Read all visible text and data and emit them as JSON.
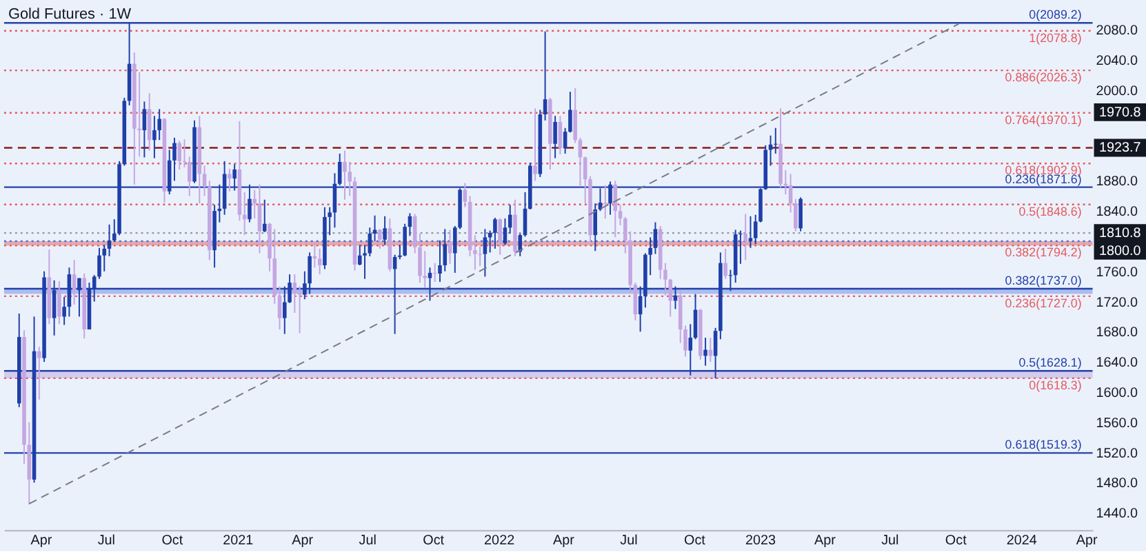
{
  "chart_data": {
    "type": "candlestick",
    "title": "Gold Futures · 1W",
    "xlim": [
      "2020-02-10",
      "2024-04-10"
    ],
    "xticks": [
      {
        "value": "2020-04-01",
        "label": "Apr"
      },
      {
        "value": "2020-07-01",
        "label": "Jul"
      },
      {
        "value": "2020-10-01",
        "label": "Oct"
      },
      {
        "value": "2021-01-01",
        "label": "2021"
      },
      {
        "value": "2021-04-01",
        "label": "Apr"
      },
      {
        "value": "2021-07-01",
        "label": "Jul"
      },
      {
        "value": "2021-10-01",
        "label": "Oct"
      },
      {
        "value": "2022-01-01",
        "label": "2022"
      },
      {
        "value": "2022-04-01",
        "label": "Apr"
      },
      {
        "value": "2022-07-01",
        "label": "Jul"
      },
      {
        "value": "2022-10-01",
        "label": "Oct"
      },
      {
        "value": "2023-01-01",
        "label": "2023"
      },
      {
        "value": "2023-04-01",
        "label": "Apr"
      },
      {
        "value": "2023-07-01",
        "label": "Jul"
      },
      {
        "value": "2023-10-01",
        "label": "Oct"
      },
      {
        "value": "2024-01-01",
        "label": "2024"
      },
      {
        "value": "2024-04-01",
        "label": "Apr"
      }
    ],
    "ylim": [
      1417,
      2117
    ],
    "yticks": [
      {
        "value": 1440,
        "label": "1440.0"
      },
      {
        "value": 1480,
        "label": "1480.0"
      },
      {
        "value": 1520,
        "label": "1520.0"
      },
      {
        "value": 1560,
        "label": "1560.0"
      },
      {
        "value": 1600,
        "label": "1600.0"
      },
      {
        "value": 1640,
        "label": "1640.0"
      },
      {
        "value": 1680,
        "label": "1680.0"
      },
      {
        "value": 1720,
        "label": "1720.0"
      },
      {
        "value": 1760,
        "label": "1760.0"
      },
      {
        "value": 1840,
        "label": "1840.0"
      },
      {
        "value": 1880,
        "label": "1880.0"
      },
      {
        "value": 2000,
        "label": "2000.0"
      },
      {
        "value": 2040,
        "label": "2040.0"
      },
      {
        "value": 2080,
        "label": "2080.0"
      }
    ],
    "grid": false,
    "series": [
      {
        "color": "#1f3fa8",
        "x": [
          "2020-03-02",
          "2020-03-23",
          "2020-04-06",
          "2020-04-20",
          "2020-05-04",
          "2020-05-11",
          "2020-05-25",
          "2020-06-08",
          "2020-06-15",
          "2020-06-22",
          "2020-06-29",
          "2020-07-06",
          "2020-07-13",
          "2020-07-20",
          "2020-07-27",
          "2020-08-03",
          "2020-08-24",
          "2020-09-07",
          "2020-09-14",
          "2020-09-28",
          "2020-10-05",
          "2020-11-02",
          "2020-11-30",
          "2020-12-07",
          "2020-12-14",
          "2020-12-28",
          "2021-01-18",
          "2021-02-08",
          "2021-03-08",
          "2021-03-15",
          "2021-04-05",
          "2021-04-12",
          "2021-05-03",
          "2021-05-10",
          "2021-05-17",
          "2021-05-24",
          "2021-06-21",
          "2021-06-28",
          "2021-07-05",
          "2021-07-12",
          "2021-07-26",
          "2021-08-09",
          "2021-08-16",
          "2021-08-23",
          "2021-08-30",
          "2021-09-27",
          "2021-10-11",
          "2021-10-18",
          "2021-11-01",
          "2021-11-08",
          "2021-12-13",
          "2021-12-20",
          "2021-12-27",
          "2022-01-10",
          "2022-01-17",
          "2022-01-31",
          "2022-02-07",
          "2022-02-14",
          "2022-02-28",
          "2022-03-07",
          "2022-03-21",
          "2022-04-04",
          "2022-04-11",
          "2022-05-16",
          "2022-05-23",
          "2022-06-06",
          "2022-07-18",
          "2022-07-25",
          "2022-08-01",
          "2022-08-08",
          "2022-09-05",
          "2022-09-26",
          "2022-10-03",
          "2022-10-17",
          "2022-10-31",
          "2022-11-07",
          "2022-11-21",
          "2022-11-28",
          "2022-12-05",
          "2022-12-19",
          "2022-12-26",
          "2023-01-02",
          "2023-01-09",
          "2023-01-16",
          "2023-01-23",
          "2023-02-27"
        ],
        "ohlc": [
          [
            1585,
            1704,
            1580,
            1673
          ],
          [
            1484,
            1700,
            1480,
            1654
          ],
          [
            1645,
            1760,
            1640,
            1752
          ],
          [
            1698,
            1748,
            1675,
            1735
          ],
          [
            1700,
            1726,
            1689,
            1713
          ],
          [
            1713,
            1765,
            1700,
            1756
          ],
          [
            1735,
            1751,
            1700,
            1751
          ],
          [
            1683,
            1745,
            1683,
            1737
          ],
          [
            1737,
            1755,
            1720,
            1753
          ],
          [
            1753,
            1791,
            1750,
            1781
          ],
          [
            1781,
            1795,
            1760,
            1790
          ],
          [
            1790,
            1822,
            1780,
            1801
          ],
          [
            1801,
            1829,
            1799,
            1810
          ],
          [
            1810,
            1906,
            1808,
            1902
          ],
          [
            1902,
            1990,
            1900,
            1986
          ],
          [
            1986,
            2089,
            1980,
            2035
          ],
          [
            1947,
            1985,
            1911,
            1975
          ],
          [
            1934,
            1966,
            1910,
            1947
          ],
          [
            1947,
            1975,
            1934,
            1962
          ],
          [
            1866,
            1921,
            1862,
            1907
          ],
          [
            1907,
            1937,
            1880,
            1930
          ],
          [
            1879,
            1960,
            1877,
            1951
          ],
          [
            1788,
            1848,
            1765,
            1840
          ],
          [
            1840,
            1875,
            1825,
            1843
          ],
          [
            1843,
            1906,
            1835,
            1889
          ],
          [
            1883,
            1902,
            1867,
            1895
          ],
          [
            1829,
            1875,
            1825,
            1856
          ],
          [
            1813,
            1855,
            1812,
            1823
          ],
          [
            1698,
            1740,
            1677,
            1719
          ],
          [
            1719,
            1756,
            1718,
            1745
          ],
          [
            1729,
            1760,
            1723,
            1744
          ],
          [
            1744,
            1785,
            1730,
            1780
          ],
          [
            1768,
            1845,
            1763,
            1832
          ],
          [
            1832,
            1845,
            1808,
            1838
          ],
          [
            1838,
            1890,
            1818,
            1876
          ],
          [
            1876,
            1916,
            1874,
            1905
          ],
          [
            1769,
            1795,
            1768,
            1781
          ],
          [
            1781,
            1795,
            1750,
            1784
          ],
          [
            1784,
            1818,
            1780,
            1810
          ],
          [
            1810,
            1834,
            1800,
            1815
          ],
          [
            1802,
            1833,
            1795,
            1817
          ],
          [
            1763,
            1782,
            1677,
            1779
          ],
          [
            1779,
            1795,
            1776,
            1781
          ],
          [
            1781,
            1823,
            1780,
            1819
          ],
          [
            1819,
            1837,
            1807,
            1833
          ],
          [
            1751,
            1765,
            1721,
            1758
          ],
          [
            1757,
            1801,
            1746,
            1768
          ],
          [
            1768,
            1816,
            1760,
            1796
          ],
          [
            1784,
            1820,
            1758,
            1818
          ],
          [
            1818,
            1870,
            1816,
            1868
          ],
          [
            1783,
            1816,
            1753,
            1805
          ],
          [
            1805,
            1814,
            1785,
            1811
          ],
          [
            1811,
            1831,
            1790,
            1829
          ],
          [
            1797,
            1830,
            1795,
            1818
          ],
          [
            1818,
            1848,
            1810,
            1835
          ],
          [
            1786,
            1810,
            1780,
            1808
          ],
          [
            1808,
            1865,
            1806,
            1843
          ],
          [
            1843,
            1904,
            1842,
            1900
          ],
          [
            1889,
            1974,
            1885,
            1968
          ],
          [
            1968,
            2078,
            1960,
            1988
          ],
          [
            1929,
            1966,
            1910,
            1958
          ],
          [
            1923,
            1950,
            1916,
            1945
          ],
          [
            1945,
            1998,
            1944,
            1974
          ],
          [
            1808,
            1850,
            1787,
            1842
          ],
          [
            1842,
            1870,
            1840,
            1851
          ],
          [
            1850,
            1879,
            1835,
            1875
          ],
          [
            1703,
            1740,
            1680,
            1727
          ],
          [
            1727,
            1784,
            1712,
            1782
          ],
          [
            1782,
            1805,
            1755,
            1791
          ],
          [
            1791,
            1825,
            1783,
            1816
          ],
          [
            1721,
            1740,
            1710,
            1728
          ],
          [
            1655,
            1690,
            1622,
            1672
          ],
          [
            1672,
            1730,
            1670,
            1709
          ],
          [
            1648,
            1672,
            1635,
            1656
          ],
          [
            1648,
            1685,
            1618,
            1681
          ],
          [
            1681,
            1785,
            1670,
            1771
          ],
          [
            1754,
            1762,
            1734,
            1755
          ],
          [
            1755,
            1815,
            1745,
            1809
          ],
          [
            1809,
            1814,
            1770,
            1810
          ],
          [
            1800,
            1833,
            1791,
            1804
          ],
          [
            1804,
            1835,
            1796,
            1826
          ],
          [
            1826,
            1870,
            1825,
            1869
          ],
          [
            1869,
            1927,
            1868,
            1921
          ],
          [
            1921,
            1940,
            1900,
            1928
          ],
          [
            1928,
            1950,
            1916,
            1929
          ],
          [
            1817,
            1858,
            1813,
            1856
          ]
        ]
      },
      {
        "color": "#c4a6e2",
        "x": [
          "2020-03-09",
          "2020-03-16",
          "2020-03-30",
          "2020-04-13",
          "2020-04-27",
          "2020-05-18",
          "2020-06-01",
          "2020-08-10",
          "2020-08-17",
          "2020-08-31",
          "2020-09-21",
          "2020-10-12",
          "2020-10-19",
          "2020-10-26",
          "2020-11-09",
          "2020-11-16",
          "2020-11-23",
          "2020-12-21",
          "2021-01-04",
          "2021-01-11",
          "2021-01-25",
          "2021-02-01",
          "2021-02-15",
          "2021-02-22",
          "2021-03-01",
          "2021-03-22",
          "2021-03-29",
          "2021-04-19",
          "2021-04-26",
          "2021-05-31",
          "2021-06-07",
          "2021-06-14",
          "2021-07-19",
          "2021-08-02",
          "2021-09-06",
          "2021-09-13",
          "2021-09-20",
          "2021-10-04",
          "2021-10-25",
          "2021-11-15",
          "2021-11-22",
          "2021-11-29",
          "2021-12-06",
          "2022-01-03",
          "2022-01-24",
          "2022-02-21",
          "2022-03-14",
          "2022-03-28",
          "2022-04-18",
          "2022-04-25",
          "2022-05-02",
          "2022-05-09",
          "2022-05-30",
          "2022-06-13",
          "2022-06-20",
          "2022-06-27",
          "2022-07-04",
          "2022-07-11",
          "2022-08-15",
          "2022-08-22",
          "2022-08-29",
          "2022-09-12",
          "2022-09-19",
          "2022-10-10",
          "2022-10-24",
          "2022-11-14",
          "2022-12-12",
          "2023-01-30",
          "2023-02-06",
          "2023-02-13",
          "2023-02-20"
        ],
        "ohlc": [
          [
            1673,
            1682,
            1505,
            1530
          ],
          [
            1530,
            1560,
            1451,
            1484
          ],
          [
            1654,
            1660,
            1590,
            1645
          ],
          [
            1752,
            1789,
            1690,
            1698
          ],
          [
            1735,
            1747,
            1690,
            1700
          ],
          [
            1756,
            1775,
            1716,
            1735
          ],
          [
            1751,
            1757,
            1671,
            1683
          ],
          [
            2035,
            2050,
            1875,
            1949
          ],
          [
            1949,
            2024,
            1912,
            1947
          ],
          [
            1975,
            1996,
            1920,
            1934
          ],
          [
            1962,
            1963,
            1851,
            1866
          ],
          [
            1930,
            1933,
            1895,
            1906
          ],
          [
            1906,
            1935,
            1898,
            1905
          ],
          [
            1905,
            1912,
            1860,
            1879
          ],
          [
            1951,
            1966,
            1850,
            1889
          ],
          [
            1889,
            1900,
            1860,
            1872
          ],
          [
            1872,
            1880,
            1775,
            1788
          ],
          [
            1889,
            1896,
            1866,
            1883
          ],
          [
            1895,
            1959,
            1827,
            1835
          ],
          [
            1835,
            1865,
            1808,
            1829
          ],
          [
            1856,
            1868,
            1830,
            1850
          ],
          [
            1850,
            1875,
            1784,
            1813
          ],
          [
            1823,
            1824,
            1760,
            1777
          ],
          [
            1777,
            1816,
            1717,
            1728
          ],
          [
            1728,
            1740,
            1683,
            1698
          ],
          [
            1745,
            1756,
            1705,
            1732
          ],
          [
            1732,
            1740,
            1678,
            1729
          ],
          [
            1780,
            1798,
            1765,
            1777
          ],
          [
            1777,
            1790,
            1756,
            1768
          ],
          [
            1905,
            1920,
            1855,
            1892
          ],
          [
            1892,
            1905,
            1860,
            1879
          ],
          [
            1879,
            1885,
            1761,
            1769
          ],
          [
            1815,
            1816,
            1790,
            1802
          ],
          [
            1817,
            1830,
            1760,
            1763
          ],
          [
            1833,
            1836,
            1784,
            1792
          ],
          [
            1792,
            1810,
            1745,
            1754
          ],
          [
            1754,
            1787,
            1738,
            1751
          ],
          [
            1758,
            1771,
            1746,
            1757
          ],
          [
            1796,
            1815,
            1770,
            1784
          ],
          [
            1868,
            1877,
            1845,
            1852
          ],
          [
            1852,
            1860,
            1780,
            1788
          ],
          [
            1788,
            1808,
            1762,
            1783
          ],
          [
            1783,
            1793,
            1767,
            1782
          ],
          [
            1829,
            1830,
            1782,
            1797
          ],
          [
            1835,
            1855,
            1780,
            1786
          ],
          [
            1900,
            1976,
            1880,
            1889
          ],
          [
            1988,
            1990,
            1895,
            1929
          ],
          [
            1958,
            1966,
            1915,
            1923
          ],
          [
            1974,
            2003,
            1930,
            1934
          ],
          [
            1934,
            1937,
            1872,
            1911
          ],
          [
            1911,
            1912,
            1850,
            1882
          ],
          [
            1882,
            1886,
            1798,
            1808
          ],
          [
            1851,
            1874,
            1830,
            1850
          ],
          [
            1875,
            1880,
            1805,
            1840
          ],
          [
            1840,
            1848,
            1821,
            1830
          ],
          [
            1830,
            1832,
            1784,
            1801
          ],
          [
            1801,
            1813,
            1732,
            1742
          ],
          [
            1742,
            1745,
            1695,
            1703
          ],
          [
            1816,
            1820,
            1750,
            1762
          ],
          [
            1762,
            1771,
            1728,
            1749
          ],
          [
            1749,
            1750,
            1700,
            1721
          ],
          [
            1728,
            1735,
            1665,
            1683
          ],
          [
            1683,
            1688,
            1647,
            1655
          ],
          [
            1709,
            1710,
            1643,
            1648
          ],
          [
            1656,
            1672,
            1640,
            1648
          ],
          [
            1771,
            1790,
            1750,
            1754
          ],
          [
            1810,
            1836,
            1775,
            1800
          ],
          [
            1929,
            1976,
            1871,
            1876
          ],
          [
            1876,
            1894,
            1862,
            1874
          ],
          [
            1874,
            1889,
            1838,
            1850
          ],
          [
            1850,
            1856,
            1813,
            1817
          ]
        ]
      },
      {
        "type": "line",
        "color": "#787b86",
        "line_style": "dashed",
        "x": [
          "2020-03-16",
          "2023-10-06"
        ],
        "values": [
          1452,
          2088
        ]
      }
    ],
    "ref_lines": [
      {
        "axis": "y",
        "value": 2089.2,
        "label": "0(2089.2)",
        "color": "#2540a8",
        "line_style": "solid"
      },
      {
        "axis": "y",
        "value": 2078.8,
        "label": "1(2078.8)",
        "color": "#e8585f",
        "line_style": "dotted"
      },
      {
        "axis": "y",
        "value": 2026.3,
        "label": "0.886(2026.3)",
        "color": "#e8585f",
        "line_style": "dotted"
      },
      {
        "axis": "y",
        "value": 1970.1,
        "label": "0.764(1970.1)",
        "color": "#e8585f",
        "line_style": "dotted"
      },
      {
        "axis": "y",
        "value": 1923.7,
        "color": "#8b1a1a",
        "line_style": "dashed"
      },
      {
        "axis": "y",
        "value": 1902.9,
        "label": "0.618(1902.9)",
        "color": "#e8585f",
        "line_style": "dotted"
      },
      {
        "axis": "y",
        "value": 1871.6,
        "label": "0.236(1871.6)",
        "color": "#2540a8",
        "line_style": "solid"
      },
      {
        "axis": "y",
        "value": 1848.6,
        "label": "0.5(1848.6)",
        "color": "#e8585f",
        "line_style": "dotted"
      },
      {
        "axis": "y",
        "value": 1810.8,
        "color": "#9598a1",
        "line_style": "dotted"
      },
      {
        "axis": "y",
        "value": 1800.0,
        "color": "#4a6fd8",
        "line_style": "dotted"
      },
      {
        "axis": "y",
        "value": 1794.2,
        "label": "0.382(1794.2)",
        "color": "#e8585f",
        "line_style": "dotted"
      },
      {
        "axis": "y",
        "value": 1737.0,
        "label": "0.382(1737.0)",
        "color": "#2540a8",
        "line_style": "solid"
      },
      {
        "axis": "y",
        "value": 1727.0,
        "label": "0.236(1727.0)",
        "color": "#e8585f",
        "line_style": "dotted"
      },
      {
        "axis": "y",
        "value": 1628.1,
        "label": "0.5(1628.1)",
        "color": "#2540a8",
        "line_style": "solid"
      },
      {
        "axis": "y",
        "value": 1618.3,
        "label": "0(1618.3)",
        "color": "#e8585f",
        "line_style": "dotted"
      },
      {
        "axis": "y",
        "value": 1519.3,
        "label": "0.618(1519.3)",
        "color": "#2540a8",
        "line_style": "solid"
      }
    ],
    "bands": [
      {
        "axis": "y",
        "from": 1794.2,
        "to": 1800.0,
        "color": "#d9534f"
      },
      {
        "axis": "y",
        "from": 1730.0,
        "to": 1737.0,
        "color": "#5b7fe0"
      },
      {
        "axis": "y",
        "from": 1618.3,
        "to": 1628.1,
        "color": "#b9a2dc"
      }
    ],
    "annotations": [
      {
        "text": "1970.8",
        "x": "2024-04-10",
        "y": 1970.8
      },
      {
        "text": "1923.7",
        "x": "2024-04-10",
        "y": 1923.7
      },
      {
        "text": "1810.8",
        "x": "2024-04-10",
        "y": 1810.8
      },
      {
        "text": "1800.0",
        "x": "2024-04-10",
        "y": 1800.0
      }
    ]
  }
}
